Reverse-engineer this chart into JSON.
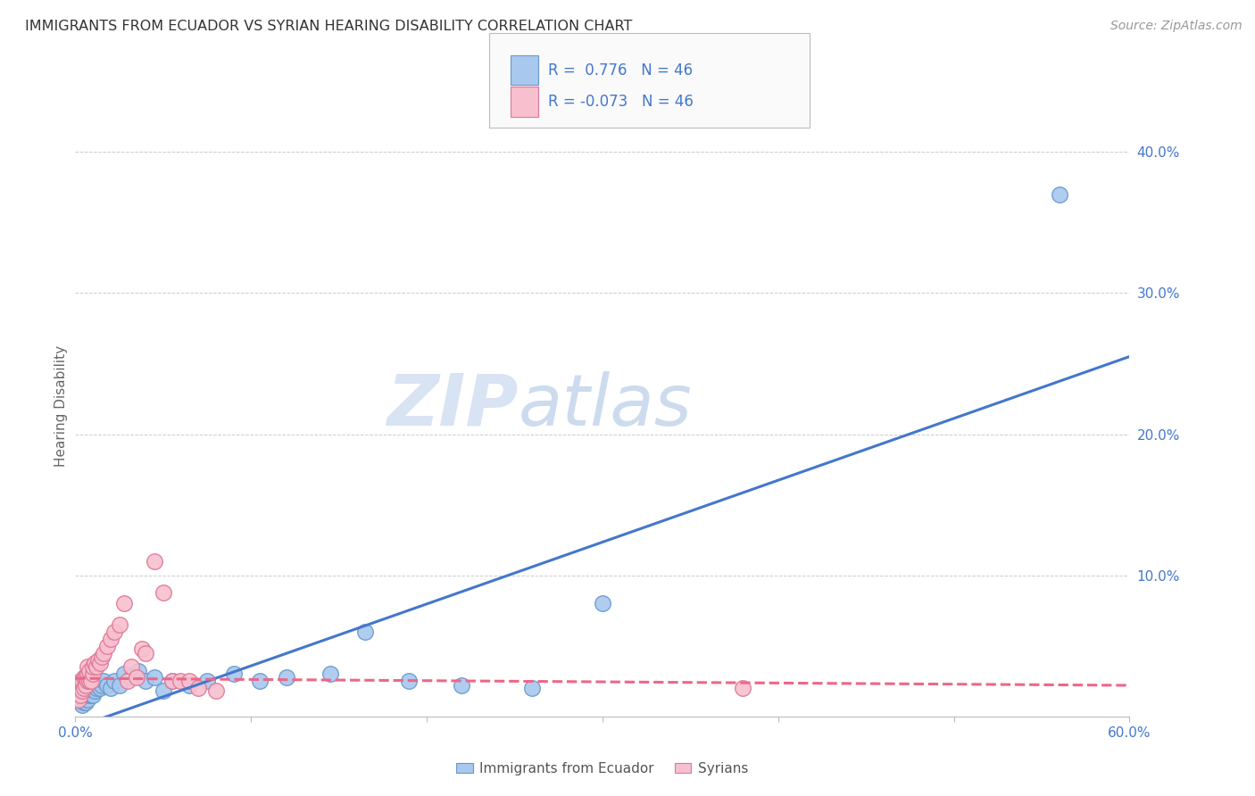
{
  "title": "IMMIGRANTS FROM ECUADOR VS SYRIAN HEARING DISABILITY CORRELATION CHART",
  "source": "Source: ZipAtlas.com",
  "ylabel": "Hearing Disability",
  "xlim": [
    0.0,
    0.6
  ],
  "ylim": [
    0.0,
    0.44
  ],
  "xtick_positions": [
    0.0,
    0.1,
    0.2,
    0.3,
    0.4,
    0.5,
    0.6
  ],
  "ytick_positions": [
    0.0,
    0.1,
    0.2,
    0.3,
    0.4
  ],
  "ytick_labels": [
    "",
    "10.0%",
    "20.0%",
    "30.0%",
    "40.0%"
  ],
  "ecuador_color": "#A8C8EE",
  "ecuador_edge_color": "#6699CC",
  "syrian_color": "#F8C0CE",
  "syrian_edge_color": "#DD7799",
  "ecuador_R": 0.776,
  "ecuador_N": 46,
  "syrian_R": -0.073,
  "syrian_N": 46,
  "ecuador_line_color": "#4477CC",
  "syrian_line_color": "#EE6688",
  "background_color": "#FFFFFF",
  "grid_color": "#CCCCCC",
  "title_color": "#333333",
  "axis_color": "#4477CC",
  "legend_label_ecuador": "Immigrants from Ecuador",
  "legend_label_syrian": "Syrians",
  "watermark_zip": "ZIP",
  "watermark_atlas": "atlas",
  "ecuador_line_x0": 0.0,
  "ecuador_line_y0": -0.008,
  "ecuador_line_x1": 0.6,
  "ecuador_line_y1": 0.255,
  "syrian_line_x0": 0.0,
  "syrian_line_y0": 0.027,
  "syrian_line_x1": 0.6,
  "syrian_line_y1": 0.022,
  "ecuador_x": [
    0.002,
    0.003,
    0.004,
    0.004,
    0.005,
    0.005,
    0.005,
    0.006,
    0.006,
    0.007,
    0.007,
    0.008,
    0.008,
    0.009,
    0.009,
    0.01,
    0.01,
    0.011,
    0.012,
    0.013,
    0.014,
    0.015,
    0.016,
    0.018,
    0.02,
    0.022,
    0.025,
    0.028,
    0.032,
    0.036,
    0.04,
    0.045,
    0.05,
    0.055,
    0.065,
    0.075,
    0.09,
    0.105,
    0.12,
    0.145,
    0.165,
    0.19,
    0.22,
    0.26,
    0.3,
    0.56
  ],
  "ecuador_y": [
    0.012,
    0.01,
    0.008,
    0.015,
    0.01,
    0.012,
    0.018,
    0.01,
    0.015,
    0.012,
    0.018,
    0.015,
    0.02,
    0.015,
    0.018,
    0.015,
    0.02,
    0.018,
    0.02,
    0.022,
    0.02,
    0.022,
    0.025,
    0.022,
    0.02,
    0.025,
    0.022,
    0.03,
    0.028,
    0.032,
    0.025,
    0.028,
    0.018,
    0.025,
    0.022,
    0.025,
    0.03,
    0.025,
    0.028,
    0.03,
    0.06,
    0.025,
    0.022,
    0.02,
    0.08,
    0.37
  ],
  "syrian_x": [
    0.001,
    0.001,
    0.002,
    0.002,
    0.002,
    0.003,
    0.003,
    0.003,
    0.004,
    0.004,
    0.005,
    0.005,
    0.006,
    0.006,
    0.007,
    0.007,
    0.007,
    0.008,
    0.008,
    0.009,
    0.01,
    0.01,
    0.011,
    0.012,
    0.013,
    0.014,
    0.015,
    0.016,
    0.018,
    0.02,
    0.022,
    0.025,
    0.028,
    0.03,
    0.032,
    0.035,
    0.038,
    0.04,
    0.045,
    0.05,
    0.055,
    0.06,
    0.065,
    0.07,
    0.08,
    0.38
  ],
  "syrian_y": [
    0.015,
    0.02,
    0.012,
    0.018,
    0.022,
    0.015,
    0.02,
    0.025,
    0.018,
    0.025,
    0.02,
    0.028,
    0.022,
    0.028,
    0.025,
    0.03,
    0.035,
    0.025,
    0.032,
    0.025,
    0.03,
    0.035,
    0.038,
    0.035,
    0.04,
    0.038,
    0.042,
    0.045,
    0.05,
    0.055,
    0.06,
    0.065,
    0.08,
    0.025,
    0.035,
    0.028,
    0.048,
    0.045,
    0.11,
    0.088,
    0.025,
    0.025,
    0.025,
    0.02,
    0.018,
    0.02
  ]
}
